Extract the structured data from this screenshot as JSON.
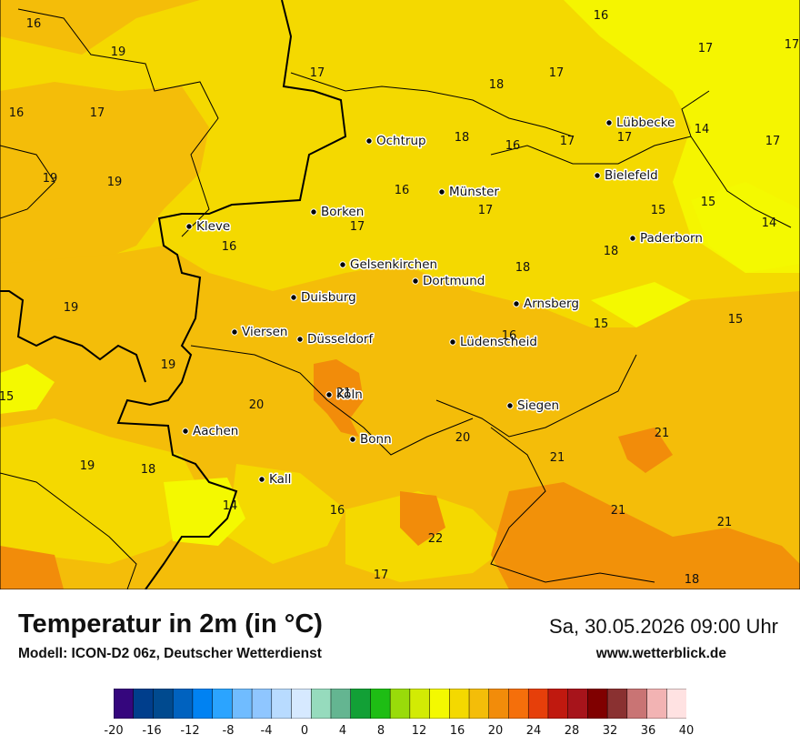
{
  "title": "Temperatur in 2m (in °C)",
  "model": "Modell: ICON-D2 06z, Deutscher Wetterdienst",
  "datetime": "Sa, 30.05.2026 09:00 Uhr",
  "website": "www.wetterblick.de",
  "cities": [
    {
      "name": "Lübbecke"
    },
    {
      "name": "Ochtrup"
    },
    {
      "name": "Bielefeld"
    },
    {
      "name": "Münster"
    },
    {
      "name": "Borken"
    },
    {
      "name": "Kleve"
    },
    {
      "name": "Paderborn"
    },
    {
      "name": "Gelsenkirchen"
    },
    {
      "name": "Dortmund"
    },
    {
      "name": "Duisburg"
    },
    {
      "name": "Arnsberg"
    },
    {
      "name": "Viersen"
    },
    {
      "name": "Düsseldorf"
    },
    {
      "name": "Lüdenscheid"
    },
    {
      "name": "Köln"
    },
    {
      "name": "Siegen"
    },
    {
      "name": "Aachen"
    },
    {
      "name": "Bonn"
    },
    {
      "name": "Kall"
    }
  ],
  "temperature_labels": [
    "16",
    "16",
    "17",
    "19",
    "17",
    "17",
    "18",
    "17",
    "16",
    "17",
    "18",
    "16",
    "17",
    "17",
    "14",
    "17",
    "19",
    "19",
    "16",
    "17",
    "15",
    "15",
    "14",
    "17",
    "16",
    "18",
    "18",
    "19",
    "15",
    "15",
    "16",
    "19",
    "15",
    "21",
    "20",
    "20",
    "21",
    "19",
    "18",
    "21",
    "14",
    "16",
    "21",
    "21",
    "22",
    "17",
    "18"
  ],
  "legend": {
    "ticks": [
      "-20",
      "-16",
      "-12",
      "-8",
      "-4",
      "0",
      "4",
      "8",
      "12",
      "16",
      "20",
      "24",
      "28",
      "32",
      "36",
      "40"
    ],
    "colors": [
      "#35067d",
      "#003e8c",
      "#004a8f",
      "#0062bf",
      "#0082f2",
      "#2ba4ff",
      "#70bcff",
      "#8fc6ff",
      "#b8dbff",
      "#d6e9ff",
      "#96dbbd",
      "#64b591",
      "#12a036",
      "#1ebd14",
      "#99db0a",
      "#d2eb04",
      "#f4f900",
      "#f4d900",
      "#f4bd09",
      "#f28c0a",
      "#f56f0b",
      "#e63f0a",
      "#c0190f",
      "#a7141b",
      "#800000",
      "#8a3131",
      "#c97474",
      "#f2b3b3",
      "#ffe2e2"
    ]
  }
}
